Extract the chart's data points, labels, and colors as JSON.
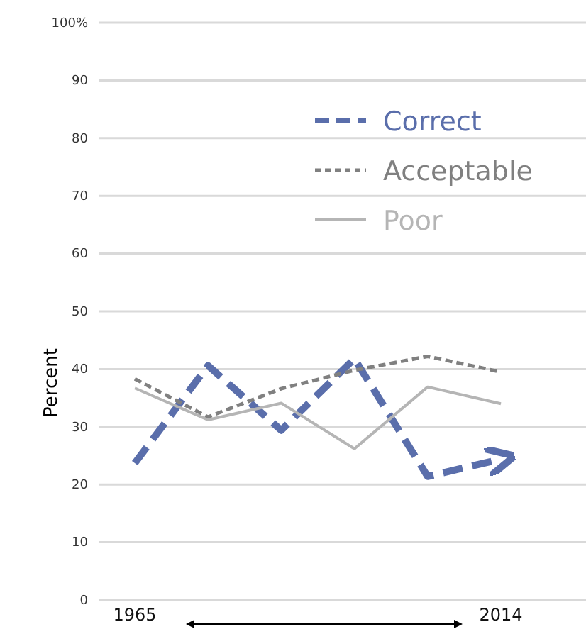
{
  "chart_data": {
    "type": "line",
    "ylabel": "Percent",
    "categories": [
      "1965",
      null,
      null,
      null,
      null,
      "2014"
    ],
    "ylim": [
      0,
      100
    ],
    "yticks": [
      0,
      10,
      20,
      30,
      40,
      50,
      60,
      70,
      80,
      90,
      {
        "value": 100,
        "label": "100%"
      }
    ],
    "grid": "y",
    "legend": "top right",
    "marker": "none",
    "series": [
      {
        "name": "Correct",
        "color": "#5a6eab",
        "line_style": "dashed",
        "values": [
          23.7,
          40.6,
          29.4,
          41.8,
          21.4,
          24.4
        ]
      },
      {
        "name": "Acceptable",
        "color": "#808080",
        "line_style": "dotted",
        "values": [
          38.3,
          31.7,
          36.6,
          39.8,
          42.2,
          39.5
        ]
      },
      {
        "name": "Poor",
        "color": "#b5b5b5",
        "line_style": "solid",
        "values": [
          36.7,
          31.2,
          34.1,
          26.2,
          36.9,
          34.0
        ]
      }
    ]
  }
}
